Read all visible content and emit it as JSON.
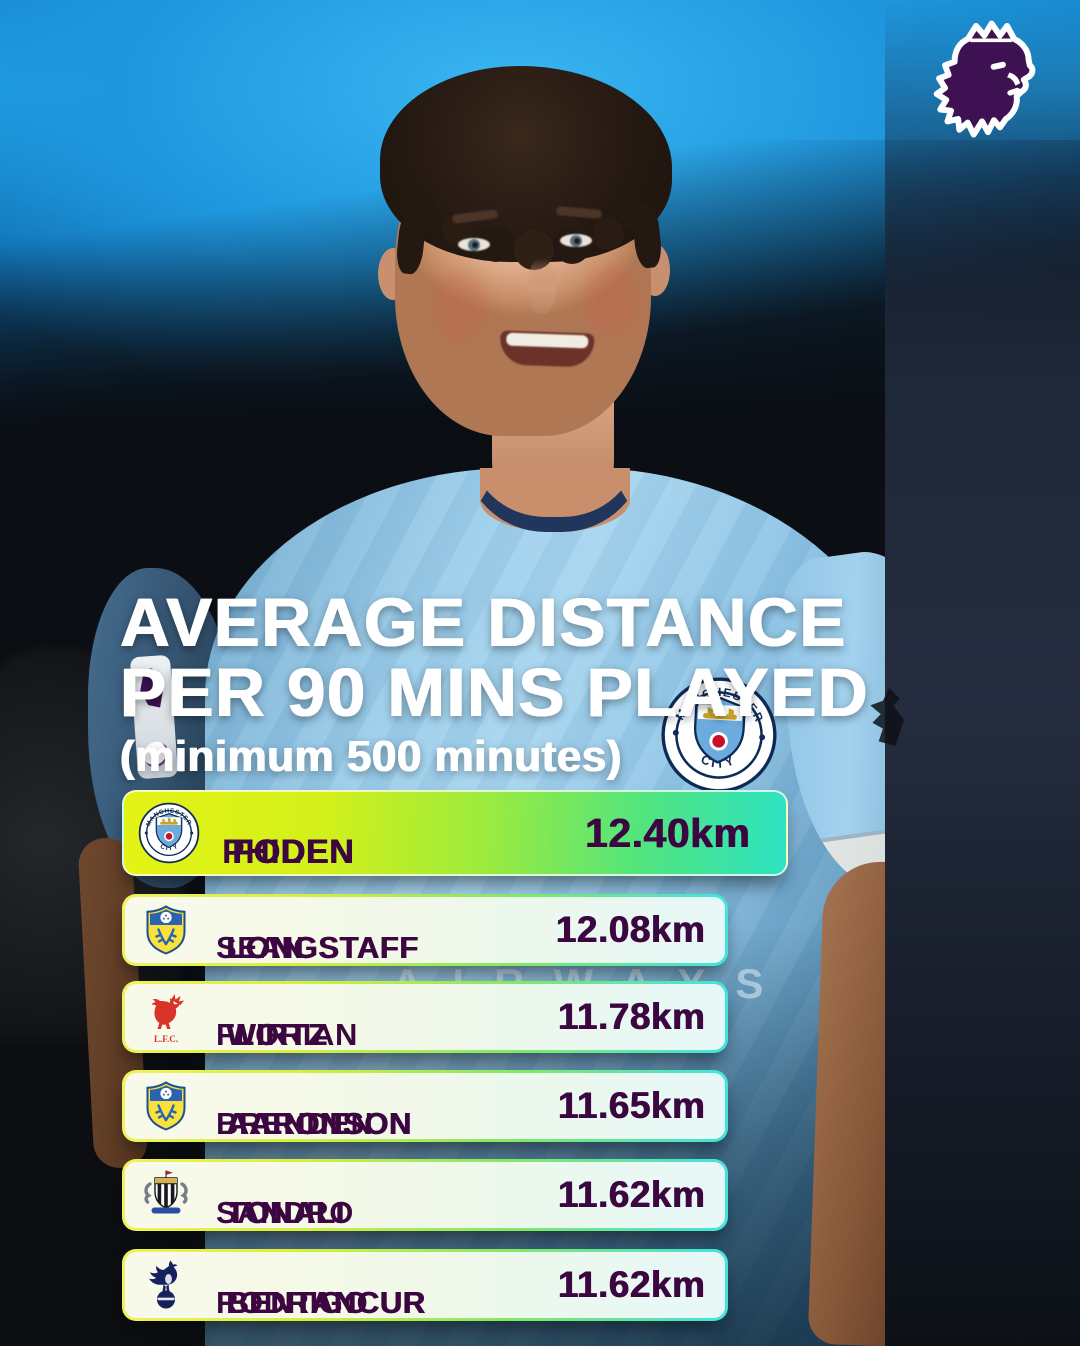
{
  "branding": {
    "league": "Premier League",
    "logo_icon": "premier-league-lion-logo"
  },
  "title": {
    "line1": "AVERAGE DISTANCE",
    "line2": "PER 90 MINS PLAYED",
    "subtitle": "(minimum 500 minutes)"
  },
  "photo": {
    "description": "Phil Foden wearing the Manchester City sky blue home shirt in front of a blurred stadium",
    "sleeve_patch_icon": "premier-league-sleeve-badge",
    "shirt_sponsor_visible_text": "AIRWAYS"
  },
  "colors": {
    "premier_league_purple": "#38003c",
    "text_purple": "#3c0740",
    "highlight_gradient_start": "#e4f315",
    "highlight_gradient_end": "#2ee2c2",
    "row_border_gradient_start": "#eef35c",
    "row_border_gradient_end": "#42e3dd",
    "sky_blue_kit": "#9bcdea"
  },
  "leaderboard": {
    "rows": [
      {
        "first_name": "PHIL",
        "last_name": "FODEN",
        "club": "Manchester City",
        "badge": "manchester-city",
        "value": "12.40km",
        "highlighted": true
      },
      {
        "first_name": "SEAN",
        "last_name": "LONGSTAFF",
        "club": "Leeds United",
        "badge": "leeds-united",
        "value": "12.08km",
        "highlighted": false
      },
      {
        "first_name": "FLORIAN",
        "last_name": "WIRTZ",
        "club": "Liverpool",
        "badge": "liverpool",
        "value": "11.78km",
        "highlighted": false
      },
      {
        "first_name": "BRENDEN",
        "last_name": "AARONSON",
        "club": "Leeds United",
        "badge": "leeds-united",
        "value": "11.65km",
        "highlighted": false
      },
      {
        "first_name": "SANDRO",
        "last_name": "TONALI",
        "club": "Newcastle United",
        "badge": "newcastle-united",
        "value": "11.62km",
        "highlighted": false
      },
      {
        "first_name": "RODRIGO",
        "last_name": "BENTANCUR",
        "club": "Tottenham Hotspur",
        "badge": "tottenham-hotspur",
        "value": "11.62km",
        "highlighted": false
      }
    ]
  }
}
